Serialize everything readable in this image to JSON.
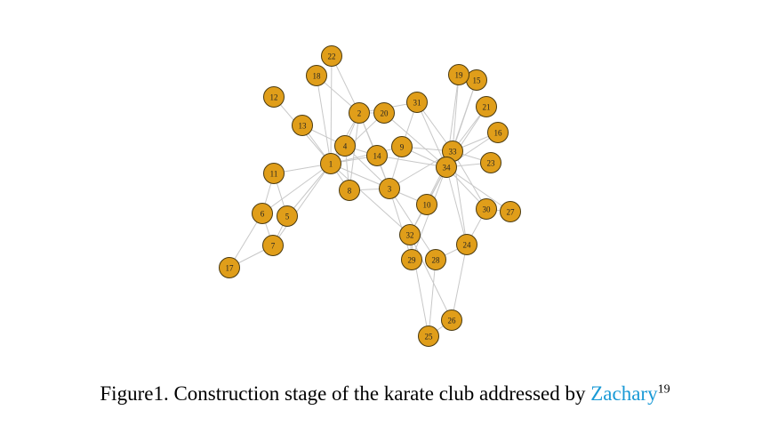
{
  "caption": {
    "text": "Figure1. Construction stage of the karate club addressed by ",
    "link_text": "Zachary",
    "citation": "19"
  },
  "colors": {
    "node_fill": "#e09e1a",
    "node_stroke": "#4a3a10",
    "edge": "#c8c8c8",
    "link": "#1a9ad6"
  },
  "graph": {
    "nodes": [
      "1",
      "2",
      "3",
      "4",
      "5",
      "6",
      "7",
      "8",
      "9",
      "10",
      "11",
      "12",
      "13",
      "14",
      "15",
      "16",
      "17",
      "18",
      "19",
      "20",
      "21",
      "22",
      "23",
      "24",
      "25",
      "26",
      "27",
      "28",
      "29",
      "30",
      "31",
      "32",
      "33",
      "34"
    ],
    "edges": [
      [
        "1",
        "2"
      ],
      [
        "1",
        "3"
      ],
      [
        "1",
        "4"
      ],
      [
        "1",
        "5"
      ],
      [
        "1",
        "6"
      ],
      [
        "1",
        "7"
      ],
      [
        "1",
        "8"
      ],
      [
        "1",
        "9"
      ],
      [
        "1",
        "11"
      ],
      [
        "1",
        "12"
      ],
      [
        "1",
        "13"
      ],
      [
        "1",
        "14"
      ],
      [
        "1",
        "18"
      ],
      [
        "1",
        "20"
      ],
      [
        "1",
        "22"
      ],
      [
        "1",
        "32"
      ],
      [
        "2",
        "3"
      ],
      [
        "2",
        "4"
      ],
      [
        "2",
        "8"
      ],
      [
        "2",
        "14"
      ],
      [
        "2",
        "18"
      ],
      [
        "2",
        "20"
      ],
      [
        "2",
        "22"
      ],
      [
        "2",
        "31"
      ],
      [
        "3",
        "4"
      ],
      [
        "3",
        "8"
      ],
      [
        "3",
        "9"
      ],
      [
        "3",
        "10"
      ],
      [
        "3",
        "14"
      ],
      [
        "3",
        "28"
      ],
      [
        "3",
        "29"
      ],
      [
        "3",
        "33"
      ],
      [
        "4",
        "8"
      ],
      [
        "4",
        "13"
      ],
      [
        "4",
        "14"
      ],
      [
        "5",
        "7"
      ],
      [
        "5",
        "11"
      ],
      [
        "6",
        "7"
      ],
      [
        "6",
        "11"
      ],
      [
        "6",
        "17"
      ],
      [
        "7",
        "17"
      ],
      [
        "9",
        "31"
      ],
      [
        "9",
        "33"
      ],
      [
        "9",
        "34"
      ],
      [
        "10",
        "34"
      ],
      [
        "14",
        "34"
      ],
      [
        "15",
        "33"
      ],
      [
        "15",
        "34"
      ],
      [
        "16",
        "33"
      ],
      [
        "16",
        "34"
      ],
      [
        "19",
        "33"
      ],
      [
        "19",
        "34"
      ],
      [
        "20",
        "34"
      ],
      [
        "21",
        "33"
      ],
      [
        "21",
        "34"
      ],
      [
        "23",
        "33"
      ],
      [
        "23",
        "34"
      ],
      [
        "24",
        "26"
      ],
      [
        "24",
        "28"
      ],
      [
        "24",
        "30"
      ],
      [
        "24",
        "33"
      ],
      [
        "24",
        "34"
      ],
      [
        "25",
        "26"
      ],
      [
        "25",
        "28"
      ],
      [
        "25",
        "32"
      ],
      [
        "26",
        "32"
      ],
      [
        "27",
        "30"
      ],
      [
        "27",
        "34"
      ],
      [
        "29",
        "32"
      ],
      [
        "29",
        "34"
      ],
      [
        "30",
        "33"
      ],
      [
        "30",
        "34"
      ],
      [
        "31",
        "33"
      ],
      [
        "31",
        "34"
      ],
      [
        "32",
        "33"
      ],
      [
        "32",
        "34"
      ],
      [
        "33",
        "34"
      ]
    ]
  }
}
